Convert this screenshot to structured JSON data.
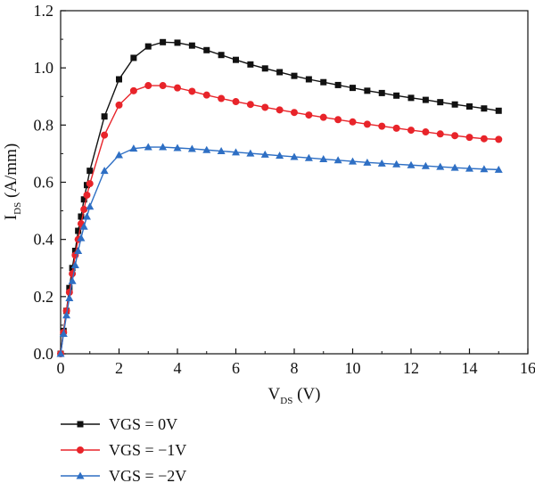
{
  "chart_data": {
    "type": "line",
    "x_axis": {
      "main": "V",
      "sub": "DS",
      "unit": " (V)"
    },
    "y_axis": {
      "main": "I",
      "sub": "DS",
      "unit": " (A/mm)"
    },
    "xlim": [
      0,
      16
    ],
    "ylim": [
      0,
      1.2
    ],
    "xticks": [
      0,
      2,
      4,
      6,
      8,
      10,
      12,
      14,
      16
    ],
    "yticks": [
      0.0,
      0.2,
      0.4,
      0.6,
      0.8,
      1.0,
      1.2
    ],
    "ytick_labels": [
      "0.0",
      "0.2",
      "0.4",
      "0.6",
      "0.8",
      "1.0",
      "1.2"
    ],
    "grid": false,
    "legend_position": "bottom-left, below plot",
    "series": [
      {
        "name": "VGS = 0V",
        "color": "#111111",
        "marker": "square",
        "x": [
          0,
          0.1,
          0.2,
          0.3,
          0.4,
          0.5,
          0.6,
          0.7,
          0.8,
          0.9,
          1.0,
          1.5,
          2.0,
          2.5,
          3.0,
          3.5,
          4.0,
          4.5,
          5.0,
          5.5,
          6.0,
          6.5,
          7.0,
          7.5,
          8.0,
          8.5,
          9.0,
          9.5,
          10.0,
          10.5,
          11.0,
          11.5,
          12.0,
          12.5,
          13.0,
          13.5,
          14.0,
          14.5,
          15.0
        ],
        "y": [
          0,
          0.08,
          0.15,
          0.23,
          0.3,
          0.36,
          0.43,
          0.48,
          0.54,
          0.59,
          0.64,
          0.83,
          0.96,
          1.035,
          1.075,
          1.09,
          1.088,
          1.078,
          1.062,
          1.045,
          1.028,
          1.012,
          0.998,
          0.985,
          0.972,
          0.96,
          0.95,
          0.94,
          0.93,
          0.92,
          0.912,
          0.903,
          0.895,
          0.888,
          0.88,
          0.872,
          0.865,
          0.858,
          0.85
        ]
      },
      {
        "name": "VGS = −1V",
        "color": "#e8242a",
        "marker": "circle",
        "x": [
          0,
          0.1,
          0.2,
          0.3,
          0.4,
          0.5,
          0.6,
          0.7,
          0.8,
          0.9,
          1.0,
          1.5,
          2.0,
          2.5,
          3.0,
          3.5,
          4.0,
          4.5,
          5.0,
          5.5,
          6.0,
          6.5,
          7.0,
          7.5,
          8.0,
          8.5,
          9.0,
          9.5,
          10.0,
          10.5,
          11.0,
          11.5,
          12.0,
          12.5,
          13.0,
          13.5,
          14.0,
          14.5,
          15.0
        ],
        "y": [
          0,
          0.075,
          0.15,
          0.215,
          0.28,
          0.345,
          0.4,
          0.455,
          0.505,
          0.555,
          0.595,
          0.765,
          0.87,
          0.92,
          0.938,
          0.938,
          0.93,
          0.918,
          0.905,
          0.893,
          0.882,
          0.872,
          0.862,
          0.853,
          0.844,
          0.835,
          0.827,
          0.819,
          0.811,
          0.803,
          0.796,
          0.789,
          0.782,
          0.776,
          0.769,
          0.763,
          0.757,
          0.752,
          0.75
        ]
      },
      {
        "name": "VGS = −2V",
        "color": "#2e6fc4",
        "marker": "triangle",
        "x": [
          0,
          0.1,
          0.2,
          0.3,
          0.4,
          0.5,
          0.6,
          0.7,
          0.8,
          0.9,
          1.0,
          1.5,
          2.0,
          2.5,
          3.0,
          3.5,
          4.0,
          4.5,
          5.0,
          5.5,
          6.0,
          6.5,
          7.0,
          7.5,
          8.0,
          8.5,
          9.0,
          9.5,
          10.0,
          10.5,
          11.0,
          11.5,
          12.0,
          12.5,
          13.0,
          13.5,
          14.0,
          14.5,
          15.0
        ],
        "y": [
          0,
          0.07,
          0.135,
          0.195,
          0.255,
          0.31,
          0.36,
          0.405,
          0.445,
          0.48,
          0.515,
          0.64,
          0.695,
          0.718,
          0.723,
          0.723,
          0.72,
          0.717,
          0.713,
          0.709,
          0.705,
          0.701,
          0.697,
          0.693,
          0.689,
          0.685,
          0.681,
          0.677,
          0.673,
          0.669,
          0.666,
          0.663,
          0.66,
          0.657,
          0.654,
          0.651,
          0.648,
          0.646,
          0.644
        ]
      }
    ]
  }
}
